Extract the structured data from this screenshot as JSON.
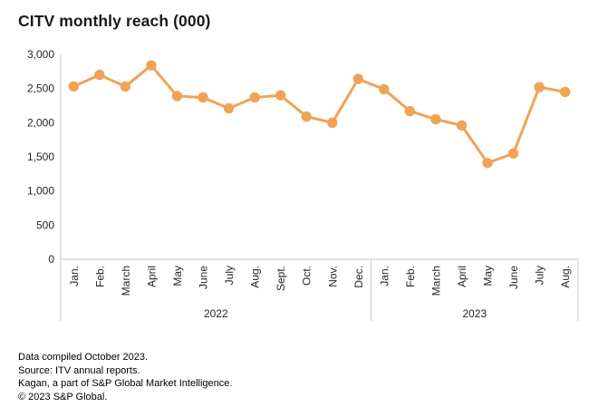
{
  "title": "CITV monthly reach (000)",
  "colors": {
    "line": "#F0A355",
    "axis": "#C7C7C7",
    "label_text": "#262626",
    "title_text": "#1A1A1A"
  },
  "chart_data": {
    "type": "line",
    "title": "CITV monthly reach (000)",
    "categories": [
      "Jan.",
      "Feb.",
      "March",
      "April",
      "May",
      "June",
      "July",
      "Aug.",
      "Sept.",
      "Oct.",
      "Nov.",
      "Dec.",
      "Jan.",
      "Feb.",
      "March",
      "April",
      "May",
      "June",
      "July",
      "Aug."
    ],
    "groups": [
      {
        "label": "2022",
        "month_count": 12
      },
      {
        "label": "2023",
        "month_count": 8
      }
    ],
    "series": [
      {
        "name": "CITV monthly reach (000)",
        "values": [
          2530,
          2700,
          2530,
          2840,
          2390,
          2370,
          2210,
          2370,
          2400,
          2090,
          2000,
          2640,
          2490,
          2170,
          2050,
          1960,
          1410,
          1550,
          2520,
          2450
        ]
      }
    ],
    "xlabel": "",
    "ylabel": "",
    "ylim": [
      0,
      3000
    ],
    "yticks": [
      0,
      500,
      1000,
      1500,
      2000,
      2500,
      3000
    ],
    "ytick_labels": [
      "0",
      "500",
      "1,000",
      "1,500",
      "2,000",
      "2,500",
      "3,000"
    ],
    "grid": false,
    "legend": false
  },
  "footer": {
    "lines": [
      "Data compiled October 2023.",
      "Source: ITV annual reports.",
      "Kagan, a part of S&P Global Market Intelligence.",
      "© 2023 S&P Global."
    ]
  }
}
